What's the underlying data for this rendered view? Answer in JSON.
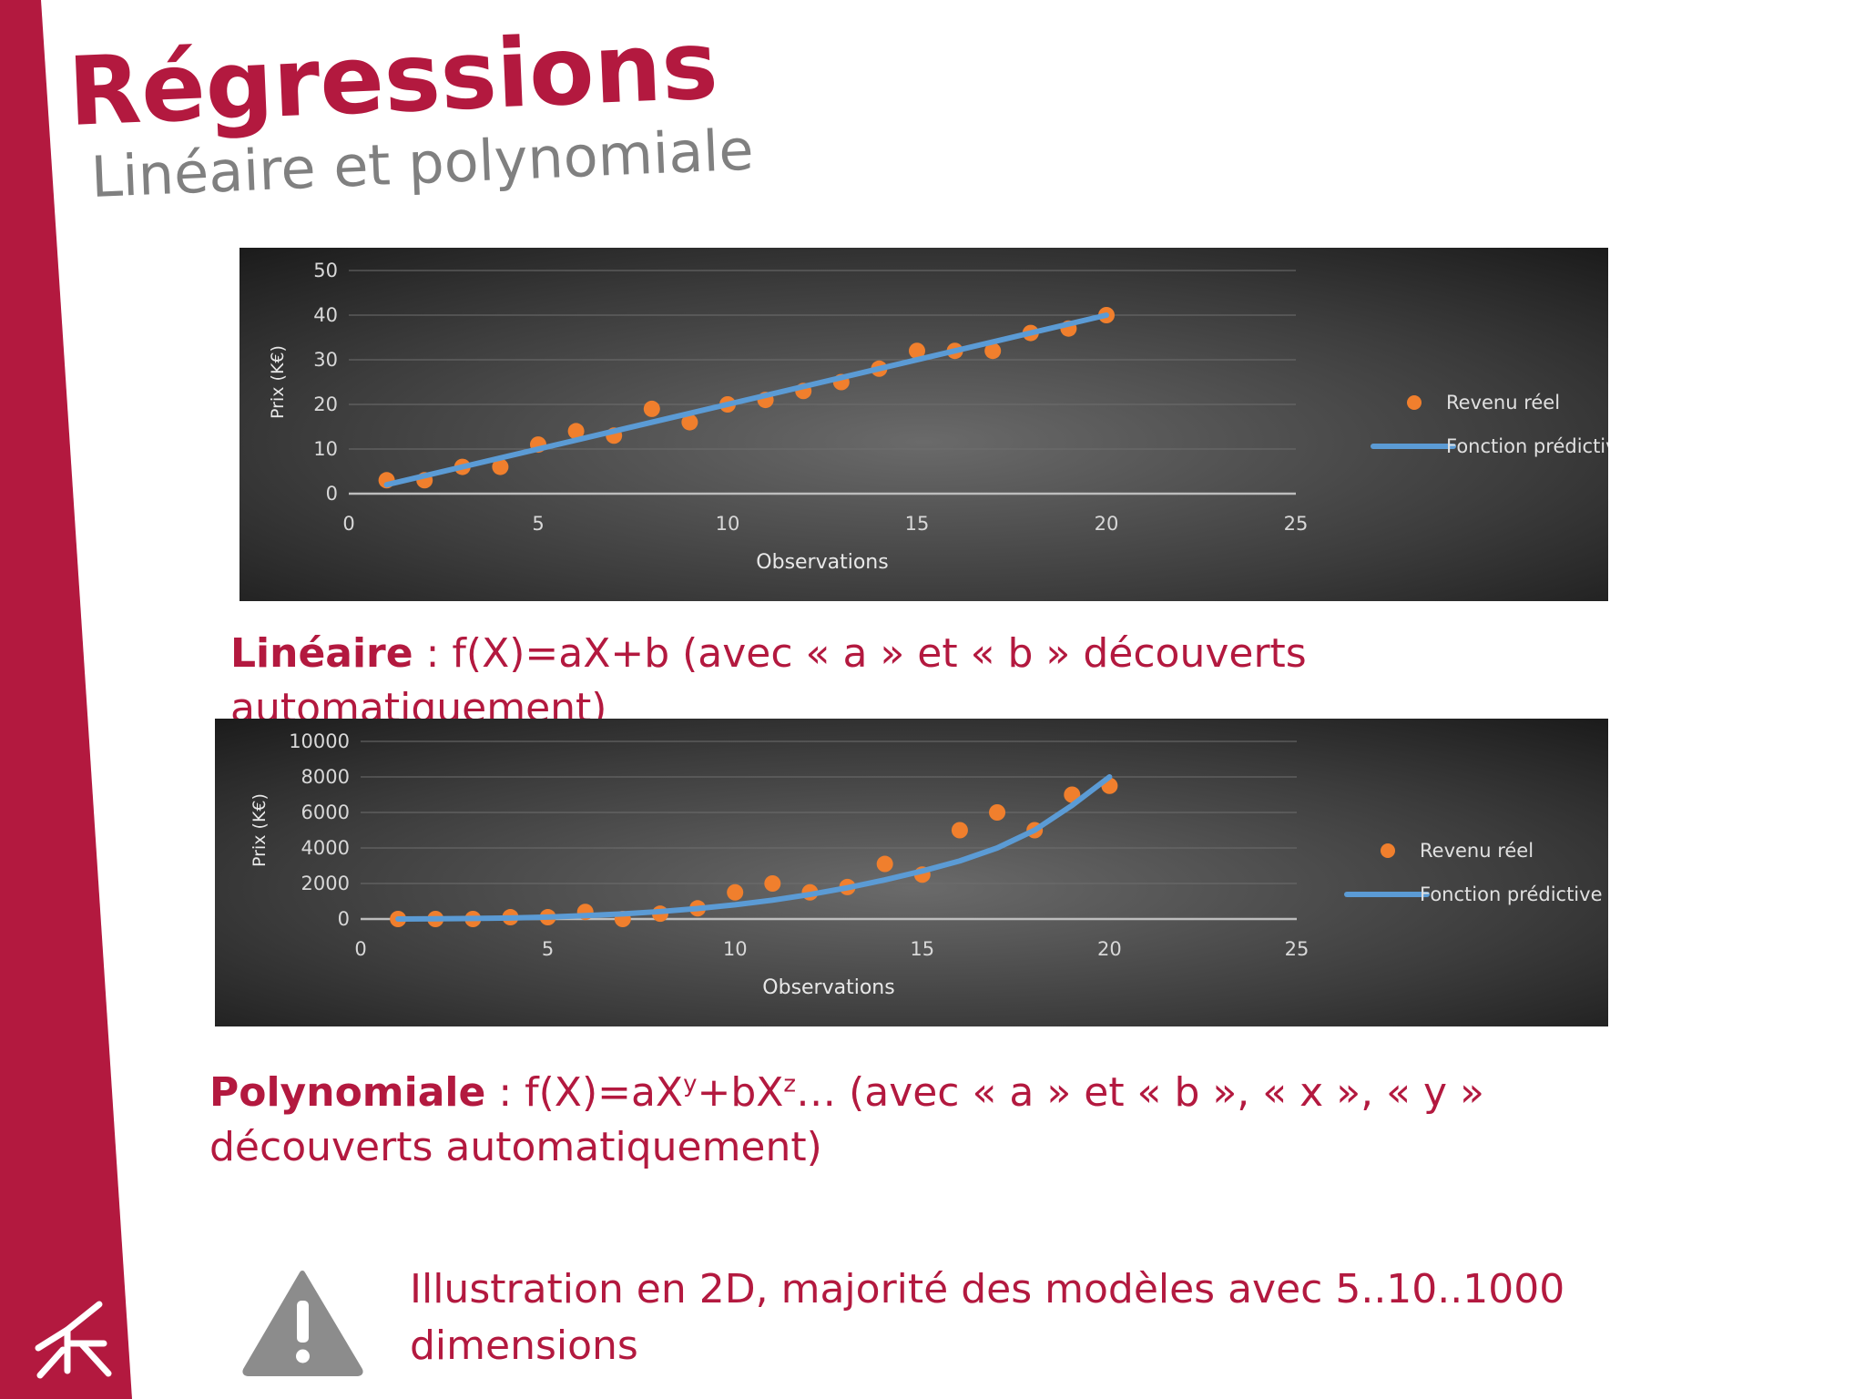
{
  "slide": {
    "title": "Régressions",
    "subtitle": "Linéaire et polynomiale",
    "accent_color": "#b3193f"
  },
  "chart_data": [
    {
      "type": "scatter",
      "xlabel": "Observations",
      "ylabel": "Prix  (K€)",
      "xlim": [
        0,
        25
      ],
      "ylim": [
        0,
        50
      ],
      "xticks": [
        0,
        5,
        10,
        15,
        20,
        25
      ],
      "yticks": [
        0,
        10,
        20,
        30,
        40,
        50
      ],
      "grid": true,
      "legend_position": "right",
      "series": [
        {
          "name": "Revenu réel",
          "kind": "scatter",
          "color": "#f07f2d",
          "x": [
            1,
            2,
            3,
            4,
            5,
            6,
            7,
            8,
            9,
            10,
            11,
            12,
            13,
            14,
            15,
            16,
            17,
            18,
            19,
            20
          ],
          "y": [
            3,
            3,
            6,
            6,
            11,
            14,
            13,
            19,
            16,
            20,
            21,
            23,
            25,
            28,
            32,
            32,
            32,
            36,
            37,
            40
          ]
        },
        {
          "name": "Fonction prédictive",
          "kind": "line",
          "color": "#5b9bd5",
          "x": [
            1,
            20
          ],
          "y": [
            2,
            40
          ]
        }
      ]
    },
    {
      "type": "scatter",
      "xlabel": "Observations",
      "ylabel": "Prix  (K€)",
      "xlim": [
        0,
        25
      ],
      "ylim": [
        0,
        10000
      ],
      "xticks": [
        0,
        5,
        10,
        15,
        20,
        25
      ],
      "yticks": [
        0,
        2000,
        4000,
        6000,
        8000,
        10000
      ],
      "grid": true,
      "legend_position": "right",
      "series": [
        {
          "name": "Revenu réel",
          "kind": "scatter",
          "color": "#f07f2d",
          "x": [
            1,
            2,
            3,
            4,
            5,
            6,
            7,
            8,
            9,
            10,
            11,
            12,
            13,
            14,
            15,
            16,
            17,
            18,
            19,
            20
          ],
          "y": [
            0,
            0,
            0,
            100,
            100,
            400,
            0,
            300,
            600,
            1500,
            2000,
            1500,
            1800,
            3100,
            2500,
            5000,
            6000,
            5000,
            7000,
            7500
          ]
        },
        {
          "name": "Fonction prédictive",
          "kind": "line",
          "color": "#5b9bd5",
          "x": [
            1,
            2,
            3,
            4,
            5,
            6,
            7,
            8,
            9,
            10,
            11,
            12,
            13,
            14,
            15,
            16,
            17,
            18,
            19,
            20
          ],
          "y": [
            0,
            10,
            30,
            60,
            110,
            190,
            290,
            420,
            590,
            800,
            1060,
            1380,
            1760,
            2200,
            2700,
            3270,
            4000,
            5000,
            6400,
            8000
          ]
        }
      ]
    }
  ],
  "captions": {
    "linear_bold": "Linéaire",
    "linear_rest": " : f(X)=aX+b (avec « a » et « b » découverts automatiquement)",
    "poly_bold": "Polynomiale",
    "poly_p1": " : f(X)=aX",
    "poly_sup1": "y",
    "poly_p2": "+bX",
    "poly_sup2": "z",
    "poly_p3": "… (avec « a » et « b », « x », « y » découverts automatiquement)"
  },
  "note": {
    "text": "Illustration en 2D, majorité des modèles avec 5..10..1000 dimensions",
    "icon": "warning-icon"
  }
}
